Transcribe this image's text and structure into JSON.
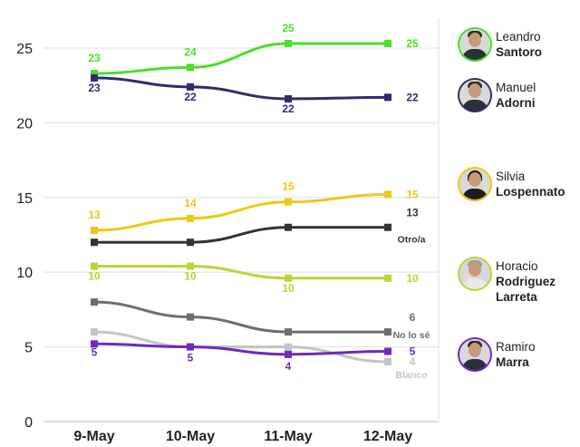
{
  "chart_data": {
    "type": "line",
    "categories": [
      "9-May",
      "10-May",
      "11-May",
      "12-May"
    ],
    "ylim": [
      0,
      27
    ],
    "yticks": [
      0,
      5,
      10,
      15,
      20,
      25
    ],
    "grid": true,
    "series": [
      {
        "name": "Leandro Santoro",
        "color": "#4cde2b",
        "values": [
          23.3,
          23.7,
          25.3,
          25.3
        ],
        "labels": [
          "23",
          "24",
          "25",
          "25"
        ]
      },
      {
        "name": "Manuel Adorni",
        "color": "#2e2d6b",
        "values": [
          23,
          22.4,
          21.6,
          21.7
        ],
        "labels": [
          "23",
          "22",
          "22",
          "22"
        ]
      },
      {
        "name": "Silvia Lospennato",
        "color": "#ecc81a",
        "values": [
          12.8,
          13.6,
          14.7,
          15.2
        ],
        "labels": [
          "13",
          "14",
          "15",
          "15"
        ]
      },
      {
        "color": "#333333",
        "values": [
          12,
          12,
          13,
          13
        ],
        "labels": [
          "",
          "",
          "",
          "13"
        ],
        "extra": "Otro/a"
      },
      {
        "name": "Horacio Rodriguez Larreta",
        "color": "#b7d636",
        "values": [
          10.4,
          10.4,
          9.6,
          9.6
        ],
        "labels": [
          "10",
          "10",
          "10",
          "10"
        ]
      },
      {
        "color": "#6e6e6e",
        "values": [
          8,
          7,
          6,
          6
        ],
        "labels": [
          "",
          "",
          "",
          "6"
        ],
        "extra": "No lo sé"
      },
      {
        "color": "#c4c4c4",
        "values": [
          6,
          5,
          5,
          4
        ],
        "labels": [
          "",
          "",
          "",
          "4"
        ],
        "extra": "Blanco"
      },
      {
        "name": "Ramiro Marra",
        "color": "#6c2bbf",
        "values": [
          5.2,
          5,
          4.5,
          4.7
        ],
        "labels": [
          "5",
          "5",
          "4",
          "5"
        ]
      }
    ]
  },
  "candidates": [
    {
      "first": "Leandro",
      "last": "Santoro",
      "color": "#4cde2b"
    },
    {
      "first": "Manuel",
      "last": "Adorni",
      "color": "#2e2d6b"
    },
    {
      "first": "Silvia",
      "last": "Lospennato",
      "color": "#ecc81a"
    },
    {
      "first": "Horacio",
      "last": "Rodriguez Larreta",
      "color": "#b7d636"
    },
    {
      "first": "Ramiro",
      "last": "Marra",
      "color": "#6c2bbf"
    }
  ]
}
